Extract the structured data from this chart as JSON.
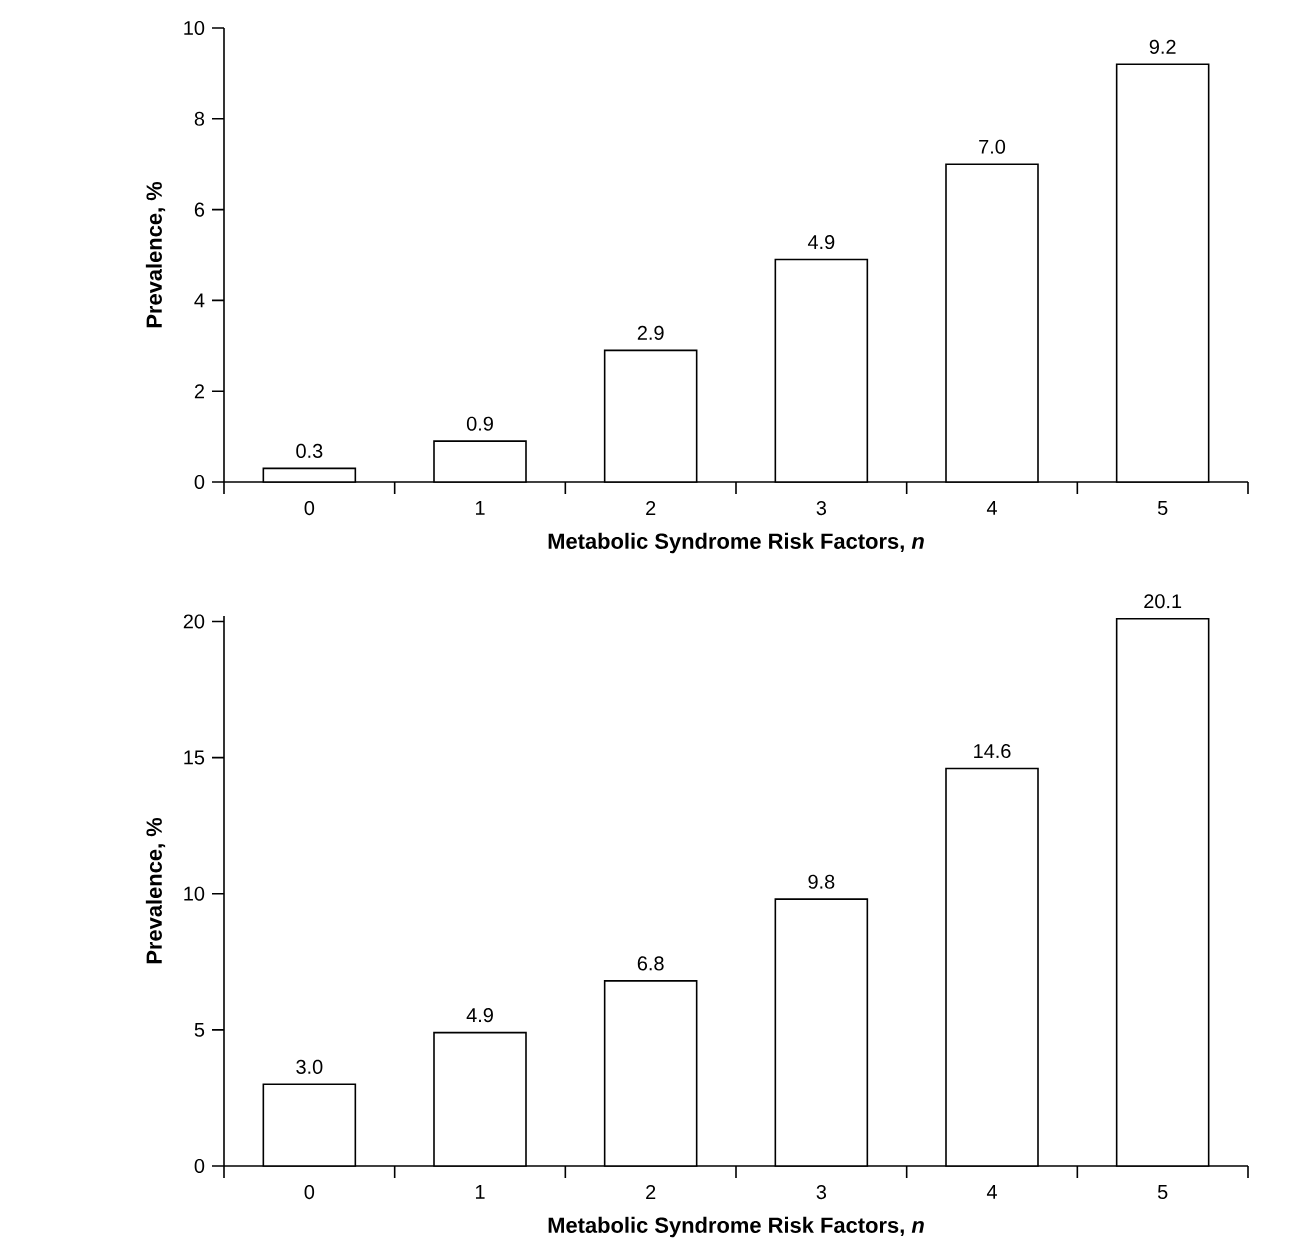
{
  "chart_data": [
    {
      "type": "bar",
      "categories": [
        "0",
        "1",
        "2",
        "3",
        "4",
        "5"
      ],
      "values": [
        0.3,
        0.9,
        2.9,
        4.9,
        7.0,
        9.2
      ],
      "value_labels": [
        "0.3",
        "0.9",
        "2.9",
        "4.9",
        "7.0",
        "9.2"
      ],
      "color": "#ffffff",
      "ylim": [
        0,
        10
      ],
      "yticks": [
        0,
        2,
        4,
        6,
        8,
        10
      ],
      "xlabel": "Metabolic Syndrome Risk Factors, *n*",
      "ylabel": "Prevalence, %"
    },
    {
      "type": "bar",
      "categories": [
        "0",
        "1",
        "2",
        "3",
        "4",
        "5"
      ],
      "values": [
        3.0,
        4.9,
        6.8,
        9.8,
        14.6,
        20.1
      ],
      "value_labels": [
        "3.0",
        "4.9",
        "6.8",
        "9.8",
        "14.6",
        "20.1"
      ],
      "color": "#ffffff",
      "ylim": [
        0,
        20.2
      ],
      "yticks": [
        0,
        5,
        10,
        15,
        20
      ],
      "xlabel": "Metabolic Syndrome Risk Factors, *n*",
      "ylabel": "Prevalence, %"
    }
  ]
}
